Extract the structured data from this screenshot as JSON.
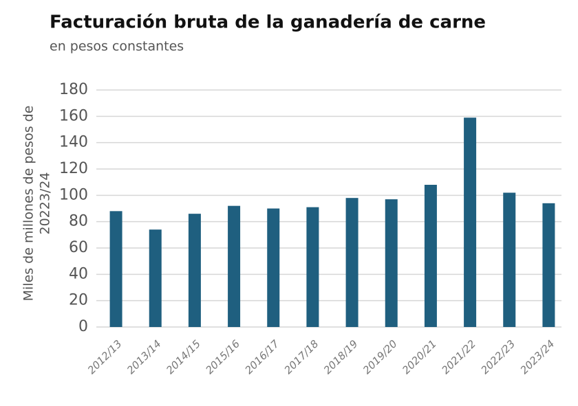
{
  "chart_data": {
    "type": "bar",
    "title": "Facturación bruta de la ganadería de carne",
    "subtitle": "en pesos constantes",
    "ylabel": [
      "Miles de millones de pesos de",
      "20223/24"
    ],
    "categories": [
      "2012/13",
      "2013/14",
      "2014/15",
      "2015/16",
      "2016/17",
      "2017/18",
      "2018/19",
      "2019/20",
      "2020/21",
      "2021/22",
      "2022/23",
      "2023/24"
    ],
    "values": [
      88,
      74,
      86,
      92,
      90,
      91,
      98,
      97,
      108,
      159,
      102,
      94
    ],
    "color": "#1f5f7f",
    "ylim": [
      0,
      180
    ],
    "yticks": [
      0,
      20,
      40,
      60,
      80,
      100,
      120,
      140,
      160,
      180
    ],
    "grid": true
  }
}
